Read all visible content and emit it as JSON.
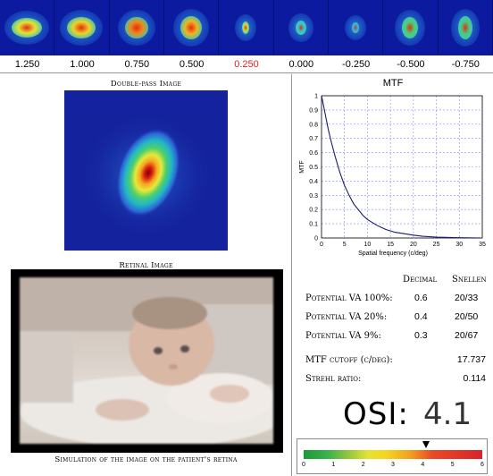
{
  "focus_strip": {
    "thumbnails": [
      {
        "value": "1.250",
        "selected": false
      },
      {
        "value": "1.000",
        "selected": false
      },
      {
        "value": "0.750",
        "selected": false
      },
      {
        "value": "0.500",
        "selected": false
      },
      {
        "value": "0.250",
        "selected": true
      },
      {
        "value": "0.000",
        "selected": false
      },
      {
        "value": "-0.250",
        "selected": false
      },
      {
        "value": "-0.500",
        "selected": false
      },
      {
        "value": "-0.750",
        "selected": false
      }
    ]
  },
  "double_pass": {
    "title": "Double-pass Image"
  },
  "retinal": {
    "title": "Retinal Image",
    "caption": "Simulation of the image on the patient's retina"
  },
  "mtf": {
    "title": "MTF",
    "chart_data": {
      "type": "line",
      "title": "MTF",
      "xlabel": "Spatial frequency (c/deg)",
      "ylabel": "MTF",
      "xlim": [
        0,
        35
      ],
      "ylim": [
        0,
        1
      ],
      "xticks": [
        "0",
        "5",
        "10",
        "15",
        "20",
        "25",
        "30",
        "35"
      ],
      "yticks": [
        "0",
        "0.1",
        "0.2",
        "0.3",
        "0.4",
        "0.5",
        "0.6",
        "0.7",
        "0.8",
        "0.9",
        "1"
      ],
      "grid": true,
      "series": [
        {
          "x": [
            0,
            0.5,
            1,
            1.5,
            2,
            3,
            4,
            5,
            6,
            7,
            8,
            9,
            10,
            12,
            14,
            16,
            18,
            20,
            22,
            25,
            30,
            35
          ],
          "values": [
            1.0,
            0.92,
            0.84,
            0.76,
            0.69,
            0.57,
            0.46,
            0.37,
            0.3,
            0.24,
            0.2,
            0.16,
            0.13,
            0.09,
            0.06,
            0.04,
            0.03,
            0.02,
            0.012,
            0.006,
            0.002,
            0.0
          ]
        }
      ]
    }
  },
  "visual_acuity": {
    "col_decimal": "Decimal",
    "col_snellen": "Snellen",
    "rows": [
      {
        "label": "Potential VA 100%:",
        "decimal": "0.6",
        "snellen": "20/33"
      },
      {
        "label": "Potential VA 20%:",
        "decimal": "0.4",
        "snellen": "20/50"
      },
      {
        "label": "Potential VA 9%:",
        "decimal": "0.3",
        "snellen": "20/67"
      }
    ]
  },
  "mtf_cutoff": {
    "label": "MTF cutoff (c/deg):",
    "value": "17.737"
  },
  "strehl": {
    "label": "Strehl ratio:",
    "value": "0.114"
  },
  "osi": {
    "label": "OSI:",
    "value": "4.1",
    "scale_ticks": [
      "0",
      "1",
      "2",
      "3",
      "4",
      "5",
      "6"
    ],
    "scale_min": 0,
    "scale_max": 6,
    "marker_value": 4.1
  }
}
